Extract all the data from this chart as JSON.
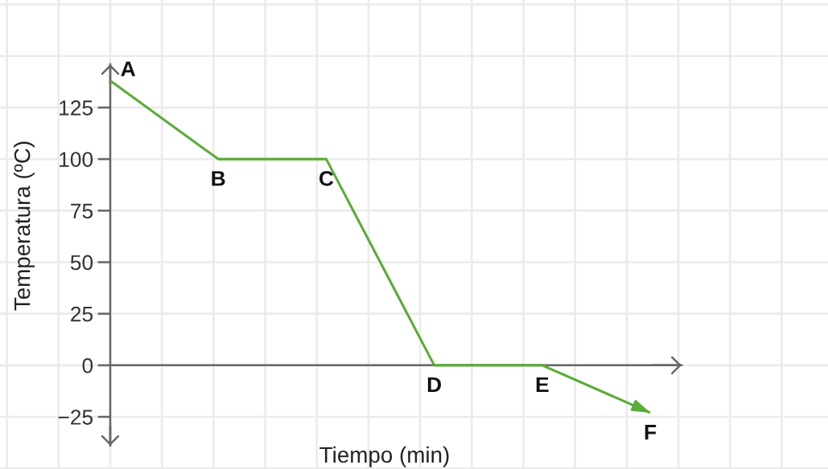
{
  "chart_data": {
    "type": "line",
    "xlabel": "Tiempo (min)",
    "ylabel": "Temperatura (ºC)",
    "categories": [
      null,
      null,
      null,
      null,
      null,
      null
    ],
    "series": [
      {
        "color": "#5aac36",
        "values": [
          138,
          100,
          100,
          0,
          0,
          -23
        ],
        "value_labels": [
          "A",
          "B",
          "C",
          "D",
          "E",
          "F"
        ]
      }
    ],
    "ylim": [
      -39,
      146
    ],
    "yticks": [
      {
        "value": -25,
        "label": "−25"
      },
      0,
      25,
      50,
      75,
      100,
      125
    ],
    "grid": true,
    "tick_labels": "y"
  }
}
